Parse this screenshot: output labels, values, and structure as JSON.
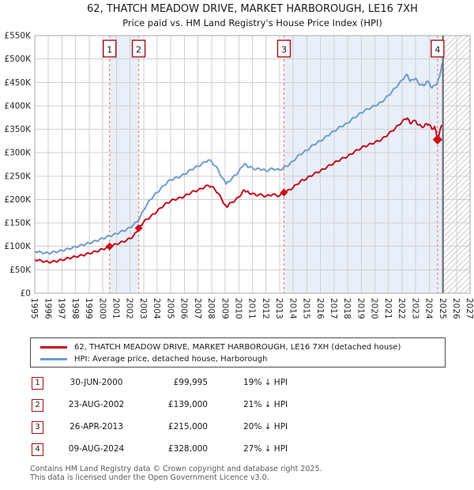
{
  "title": "62, THATCH MEADOW DRIVE, MARKET HARBOROUGH, LE16 7XH",
  "subtitle": "Price paid vs. HM Land Registry's House Price Index (HPI)",
  "legend": [
    {
      "label": "62, THATCH MEADOW DRIVE, MARKET HARBOROUGH, LE16 7XH (detached house)",
      "color": "#c20f1e"
    },
    {
      "label": "HPI: Average price, detached house, Harborough",
      "color": "#6f9bd0"
    }
  ],
  "transactions": [
    {
      "n": "1",
      "date": "30-JUN-2000",
      "price": "£99,995",
      "hpi_diff": "19% ↓ HPI",
      "year": 2000.5,
      "value": 99995
    },
    {
      "n": "2",
      "date": "23-AUG-2002",
      "price": "£139,000",
      "hpi_diff": "21% ↓ HPI",
      "year": 2002.64,
      "value": 139000
    },
    {
      "n": "3",
      "date": "26-APR-2013",
      "price": "£215,000",
      "hpi_diff": "20% ↓ HPI",
      "year": 2013.32,
      "value": 215000
    },
    {
      "n": "4",
      "date": "09-AUG-2024",
      "price": "£328,000",
      "hpi_diff": "27% ↓ HPI",
      "year": 2024.61,
      "value": 328000
    }
  ],
  "footer": [
    "Contains HM Land Registry data © Crown copyright and database right 2025.",
    "This data is licensed under the Open Government Licence v3.0."
  ],
  "chart_data": {
    "type": "line",
    "title": "62, THATCH MEADOW DRIVE, MARKET HARBOROUGH, LE16 7XH",
    "xlabel": "",
    "ylabel": "",
    "x_range": [
      1995,
      2027
    ],
    "y_range": [
      0,
      550000
    ],
    "x_ticks": [
      "1995",
      "1996",
      "1997",
      "1998",
      "1999",
      "2000",
      "2001",
      "2002",
      "2003",
      "2004",
      "2005",
      "2006",
      "2007",
      "2008",
      "2009",
      "2010",
      "2011",
      "2012",
      "2013",
      "2014",
      "2015",
      "2016",
      "2017",
      "2018",
      "2019",
      "2020",
      "2021",
      "2022",
      "2023",
      "2024",
      "2025",
      "2026",
      "2027"
    ],
    "y_ticks": [
      "£0",
      "£50K",
      "£100K",
      "£150K",
      "£200K",
      "£250K",
      "£300K",
      "£350K",
      "£400K",
      "£450K",
      "£500K",
      "£550K"
    ],
    "y_tick_step": 50000,
    "grid": true,
    "legend_position": "below",
    "data_end_year": 2024.95,
    "shaded_bands": [
      [
        2000.5,
        2002.64
      ],
      [
        2013.32,
        2024.95
      ]
    ],
    "colors": {
      "property": "#c20f1e",
      "hpi": "#6f9bd0",
      "band": "#ccdcf0",
      "grid": "#cfcfcf",
      "spine": "#a8a8a8",
      "dashed_marker": "#f47c7c",
      "hatch": "#c4c4c4",
      "end_line": "#6e6e6e",
      "sale_marker": "#cc0d1d",
      "box_border": "#a50f15"
    },
    "series": [
      {
        "name": "price-paid-indexed",
        "color": "#c20f1e",
        "points": [
          [
            1995.0,
            72000
          ],
          [
            1995.25,
            70500
          ],
          [
            1995.5,
            69000
          ],
          [
            1995.75,
            67500
          ],
          [
            1996.0,
            66500
          ],
          [
            1996.25,
            67000
          ],
          [
            1996.5,
            68000
          ],
          [
            1996.75,
            69500
          ],
          [
            1997.0,
            71000
          ],
          [
            1997.25,
            73000
          ],
          [
            1997.5,
            75000
          ],
          [
            1997.75,
            76500
          ],
          [
            1998.0,
            78000
          ],
          [
            1998.25,
            79500
          ],
          [
            1998.5,
            81000
          ],
          [
            1998.75,
            83000
          ],
          [
            1999.0,
            85000
          ],
          [
            1999.25,
            87000
          ],
          [
            1999.5,
            89000
          ],
          [
            1999.75,
            91500
          ],
          [
            2000.0,
            94000
          ],
          [
            2000.25,
            97000
          ],
          [
            2000.5,
            99995
          ],
          [
            2000.75,
            102000
          ],
          [
            2001.0,
            105000
          ],
          [
            2001.25,
            107500
          ],
          [
            2001.5,
            110000
          ],
          [
            2001.75,
            113000
          ],
          [
            2002.0,
            117000
          ],
          [
            2002.25,
            122000
          ],
          [
            2002.5,
            131000
          ],
          [
            2002.64,
            139000
          ],
          [
            2002.75,
            143000
          ],
          [
            2003.0,
            152000
          ],
          [
            2003.25,
            158000
          ],
          [
            2003.5,
            163000
          ],
          [
            2003.75,
            169000
          ],
          [
            2004.0,
            175000
          ],
          [
            2004.25,
            182000
          ],
          [
            2004.5,
            188000
          ],
          [
            2004.75,
            193000
          ],
          [
            2005.0,
            197000
          ],
          [
            2005.25,
            200000
          ],
          [
            2005.5,
            202000
          ],
          [
            2005.75,
            204000
          ],
          [
            2006.0,
            207000
          ],
          [
            2006.25,
            211000
          ],
          [
            2006.5,
            215000
          ],
          [
            2006.75,
            218000
          ],
          [
            2007.0,
            220000
          ],
          [
            2007.25,
            223000
          ],
          [
            2007.5,
            227000
          ],
          [
            2007.75,
            230000
          ],
          [
            2008.0,
            228000
          ],
          [
            2008.25,
            221000
          ],
          [
            2008.5,
            213000
          ],
          [
            2008.75,
            200000
          ],
          [
            2009.0,
            188000
          ],
          [
            2009.1,
            184000
          ],
          [
            2009.25,
            189000
          ],
          [
            2009.5,
            194000
          ],
          [
            2009.75,
            199000
          ],
          [
            2010.0,
            205000
          ],
          [
            2010.25,
            215000
          ],
          [
            2010.4,
            220000
          ],
          [
            2010.6,
            217000
          ],
          [
            2010.75,
            214000
          ],
          [
            2011.0,
            213000
          ],
          [
            2011.25,
            209000
          ],
          [
            2011.5,
            211000
          ],
          [
            2011.75,
            209000
          ],
          [
            2012.0,
            207000
          ],
          [
            2012.25,
            209000
          ],
          [
            2012.5,
            211000
          ],
          [
            2012.75,
            209000
          ],
          [
            2013.0,
            208000
          ],
          [
            2013.32,
            215000
          ],
          [
            2013.5,
            217000
          ],
          [
            2013.75,
            221000
          ],
          [
            2014.0,
            226000
          ],
          [
            2014.25,
            232000
          ],
          [
            2014.5,
            238000
          ],
          [
            2014.75,
            242000
          ],
          [
            2015.0,
            245000
          ],
          [
            2015.25,
            250000
          ],
          [
            2015.5,
            254000
          ],
          [
            2015.75,
            258000
          ],
          [
            2016.0,
            261000
          ],
          [
            2016.25,
            265000
          ],
          [
            2016.5,
            270000
          ],
          [
            2016.75,
            274000
          ],
          [
            2017.0,
            278000
          ],
          [
            2017.25,
            282000
          ],
          [
            2017.5,
            286000
          ],
          [
            2017.75,
            289000
          ],
          [
            2018.0,
            292000
          ],
          [
            2018.25,
            297000
          ],
          [
            2018.5,
            302000
          ],
          [
            2018.75,
            306000
          ],
          [
            2019.0,
            310000
          ],
          [
            2019.25,
            314000
          ],
          [
            2019.5,
            316000
          ],
          [
            2019.75,
            319000
          ],
          [
            2020.0,
            322000
          ],
          [
            2020.25,
            325000
          ],
          [
            2020.5,
            328000
          ],
          [
            2020.75,
            334000
          ],
          [
            2021.0,
            340000
          ],
          [
            2021.25,
            346000
          ],
          [
            2021.5,
            352000
          ],
          [
            2021.75,
            359000
          ],
          [
            2022.0,
            366000
          ],
          [
            2022.25,
            372000
          ],
          [
            2022.4,
            374000
          ],
          [
            2022.6,
            362000
          ],
          [
            2022.75,
            366000
          ],
          [
            2023.0,
            368000
          ],
          [
            2023.2,
            359000
          ],
          [
            2023.4,
            357000
          ],
          [
            2023.6,
            355000
          ],
          [
            2023.8,
            362000
          ],
          [
            2024.0,
            360000
          ],
          [
            2024.2,
            350000
          ],
          [
            2024.4,
            356000
          ],
          [
            2024.61,
            328000
          ],
          [
            2024.8,
            349000
          ],
          [
            2024.95,
            359000
          ]
        ]
      },
      {
        "name": "hpi-detached-harborough",
        "color": "#6f9bd0",
        "points": [
          [
            1995.0,
            90000
          ],
          [
            1995.25,
            88000
          ],
          [
            1995.5,
            87000
          ],
          [
            1995.75,
            86000
          ],
          [
            1996.0,
            85500
          ],
          [
            1996.25,
            87000
          ],
          [
            1996.5,
            88000
          ],
          [
            1996.75,
            89500
          ],
          [
            1997.0,
            91000
          ],
          [
            1997.25,
            93000
          ],
          [
            1997.5,
            95000
          ],
          [
            1997.75,
            97000
          ],
          [
            1998.0,
            99000
          ],
          [
            1998.25,
            101000
          ],
          [
            1998.5,
            103000
          ],
          [
            1998.75,
            105000
          ],
          [
            1999.0,
            107000
          ],
          [
            1999.25,
            109000
          ],
          [
            1999.5,
            112000
          ],
          [
            1999.75,
            114000
          ],
          [
            2000.0,
            117000
          ],
          [
            2000.25,
            119500
          ],
          [
            2000.5,
            122000
          ],
          [
            2000.75,
            124500
          ],
          [
            2001.0,
            127000
          ],
          [
            2001.25,
            130000
          ],
          [
            2001.5,
            133000
          ],
          [
            2001.75,
            136000
          ],
          [
            2002.0,
            140000
          ],
          [
            2002.25,
            146000
          ],
          [
            2002.5,
            152000
          ],
          [
            2002.75,
            163000
          ],
          [
            2003.0,
            177000
          ],
          [
            2003.25,
            190000
          ],
          [
            2003.5,
            200000
          ],
          [
            2003.75,
            208000
          ],
          [
            2004.0,
            215000
          ],
          [
            2004.25,
            223000
          ],
          [
            2004.5,
            230000
          ],
          [
            2004.75,
            237000
          ],
          [
            2005.0,
            242000
          ],
          [
            2005.25,
            245000
          ],
          [
            2005.5,
            247000
          ],
          [
            2005.75,
            250000
          ],
          [
            2006.0,
            254000
          ],
          [
            2006.25,
            259000
          ],
          [
            2006.5,
            264000
          ],
          [
            2006.75,
            268000
          ],
          [
            2007.0,
            271000
          ],
          [
            2007.25,
            275000
          ],
          [
            2007.5,
            280000
          ],
          [
            2007.75,
            284000
          ],
          [
            2008.0,
            281000
          ],
          [
            2008.25,
            272000
          ],
          [
            2008.5,
            263000
          ],
          [
            2008.75,
            247000
          ],
          [
            2009.0,
            237000
          ],
          [
            2009.1,
            234000
          ],
          [
            2009.25,
            238000
          ],
          [
            2009.5,
            245000
          ],
          [
            2009.75,
            252000
          ],
          [
            2010.0,
            260000
          ],
          [
            2010.25,
            270000
          ],
          [
            2010.4,
            276000
          ],
          [
            2010.6,
            272000
          ],
          [
            2010.75,
            269000
          ],
          [
            2011.0,
            268000
          ],
          [
            2011.25,
            264000
          ],
          [
            2011.5,
            266000
          ],
          [
            2011.75,
            264000
          ],
          [
            2012.0,
            261000
          ],
          [
            2012.25,
            264000
          ],
          [
            2012.5,
            266000
          ],
          [
            2012.75,
            264000
          ],
          [
            2013.0,
            263000
          ],
          [
            2013.25,
            267000
          ],
          [
            2013.5,
            271000
          ],
          [
            2013.75,
            276000
          ],
          [
            2014.0,
            282000
          ],
          [
            2014.25,
            290000
          ],
          [
            2014.5,
            296000
          ],
          [
            2014.75,
            301000
          ],
          [
            2015.0,
            305000
          ],
          [
            2015.25,
            311000
          ],
          [
            2015.5,
            317000
          ],
          [
            2015.75,
            321000
          ],
          [
            2016.0,
            325000
          ],
          [
            2016.25,
            330000
          ],
          [
            2016.5,
            336000
          ],
          [
            2016.75,
            341000
          ],
          [
            2017.0,
            346000
          ],
          [
            2017.25,
            351000
          ],
          [
            2017.5,
            356000
          ],
          [
            2017.75,
            359000
          ],
          [
            2018.0,
            363000
          ],
          [
            2018.25,
            370000
          ],
          [
            2018.5,
            375000
          ],
          [
            2018.75,
            380000
          ],
          [
            2019.0,
            385000
          ],
          [
            2019.25,
            390000
          ],
          [
            2019.5,
            393000
          ],
          [
            2019.75,
            397000
          ],
          [
            2020.0,
            400000
          ],
          [
            2020.25,
            404000
          ],
          [
            2020.5,
            408000
          ],
          [
            2020.75,
            415000
          ],
          [
            2021.0,
            422000
          ],
          [
            2021.25,
            430000
          ],
          [
            2021.5,
            438000
          ],
          [
            2021.75,
            446000
          ],
          [
            2022.0,
            455000
          ],
          [
            2022.25,
            464000
          ],
          [
            2022.4,
            466000
          ],
          [
            2022.6,
            452000
          ],
          [
            2022.75,
            456000
          ],
          [
            2023.0,
            459000
          ],
          [
            2023.2,
            448000
          ],
          [
            2023.4,
            445000
          ],
          [
            2023.6,
            443000
          ],
          [
            2023.8,
            452000
          ],
          [
            2024.0,
            449000
          ],
          [
            2024.2,
            438000
          ],
          [
            2024.4,
            444000
          ],
          [
            2024.6,
            450000
          ],
          [
            2024.75,
            462000
          ],
          [
            2024.95,
            491000
          ]
        ]
      }
    ]
  }
}
